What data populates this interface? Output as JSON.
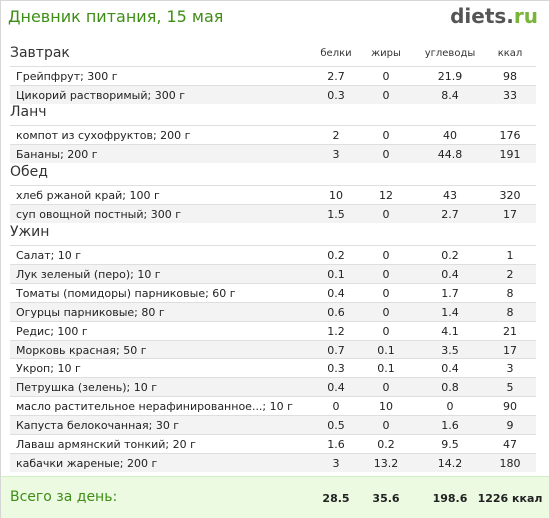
{
  "header": {
    "title": "Дневник питания, 15 мая",
    "logo_main": "diets",
    "logo_dot": ".",
    "logo_tld": "ru"
  },
  "columns": [
    "белки",
    "жиры",
    "углеводы",
    "ккал"
  ],
  "sections": [
    {
      "name": "Завтрак",
      "items": [
        {
          "name": "Грейпфрут; 300 г",
          "protein": "2.7",
          "fat": "0",
          "carbs": "21.9",
          "kcal": "98"
        },
        {
          "name": "Цикорий растворимый; 300 г",
          "protein": "0.3",
          "fat": "0",
          "carbs": "8.4",
          "kcal": "33"
        }
      ]
    },
    {
      "name": "Ланч",
      "items": [
        {
          "name": "компот из сухофруктов; 200 г",
          "protein": "2",
          "fat": "0",
          "carbs": "40",
          "kcal": "176"
        },
        {
          "name": "Бананы; 200 г",
          "protein": "3",
          "fat": "0",
          "carbs": "44.8",
          "kcal": "191"
        }
      ]
    },
    {
      "name": "Обед",
      "items": [
        {
          "name": "хлеб ржаной край; 100 г",
          "protein": "10",
          "fat": "12",
          "carbs": "43",
          "kcal": "320"
        },
        {
          "name": "суп овощной постный; 300 г",
          "protein": "1.5",
          "fat": "0",
          "carbs": "2.7",
          "kcal": "17"
        }
      ]
    },
    {
      "name": "Ужин",
      "items": [
        {
          "name": "Салат; 10 г",
          "protein": "0.2",
          "fat": "0",
          "carbs": "0.2",
          "kcal": "1"
        },
        {
          "name": "Лук зеленый (перо); 10 г",
          "protein": "0.1",
          "fat": "0",
          "carbs": "0.4",
          "kcal": "2"
        },
        {
          "name": "Томаты (помидоры) парниковые; 60 г",
          "protein": "0.4",
          "fat": "0",
          "carbs": "1.7",
          "kcal": "8"
        },
        {
          "name": "Огурцы парниковые; 80 г",
          "protein": "0.6",
          "fat": "0",
          "carbs": "1.4",
          "kcal": "8"
        },
        {
          "name": "Редис; 100 г",
          "protein": "1.2",
          "fat": "0",
          "carbs": "4.1",
          "kcal": "21"
        },
        {
          "name": "Морковь красная; 50 г",
          "protein": "0.7",
          "fat": "0.1",
          "carbs": "3.5",
          "kcal": "17"
        },
        {
          "name": "Укроп; 10 г",
          "protein": "0.3",
          "fat": "0.1",
          "carbs": "0.4",
          "kcal": "3"
        },
        {
          "name": "Петрушка (зелень); 10 г",
          "protein": "0.4",
          "fat": "0",
          "carbs": "0.8",
          "kcal": "5"
        },
        {
          "name": "масло растительное нерафинированное...; 10 г",
          "protein": "0",
          "fat": "10",
          "carbs": "0",
          "kcal": "90"
        },
        {
          "name": "Капуста белокочанная; 30 г",
          "protein": "0.5",
          "fat": "0",
          "carbs": "1.6",
          "kcal": "9"
        },
        {
          "name": "Лаваш армянский тонкий; 20 г",
          "protein": "1.6",
          "fat": "0.2",
          "carbs": "9.5",
          "kcal": "47"
        },
        {
          "name": "кабачки жареные; 200 г",
          "protein": "3",
          "fat": "13.2",
          "carbs": "14.2",
          "kcal": "180"
        }
      ]
    }
  ],
  "totals": {
    "label": "Всего за день:",
    "protein": "28.5",
    "fat": "35.6",
    "carbs": "198.6",
    "kcal": "1226 ккал"
  }
}
